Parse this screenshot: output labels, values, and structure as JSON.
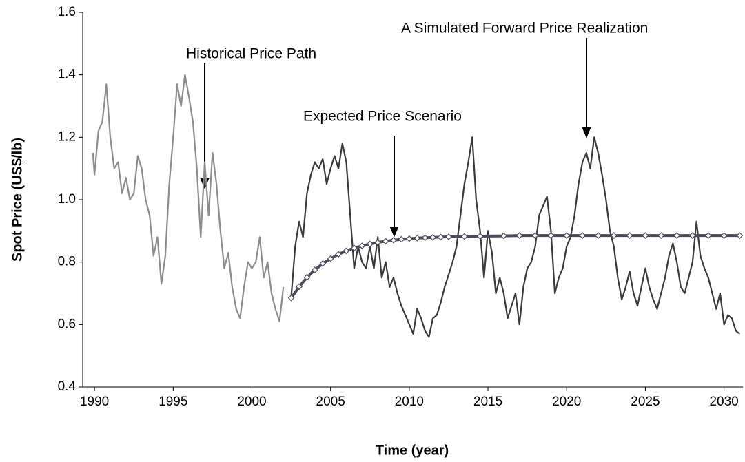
{
  "chart_data": {
    "type": "line",
    "xlabel": "Time (year)",
    "ylabel": "Spot Price (US$/lb)",
    "xlim": [
      1989.25,
      2031.2
    ],
    "xticks": [
      1990,
      1995,
      2000,
      2005,
      2010,
      2015,
      2020,
      2025,
      2030
    ],
    "ylim": [
      0.4,
      1.6
    ],
    "yticks": [
      0.4,
      0.6,
      0.8,
      {
        "value": 1.0,
        "label": "1.0"
      },
      1.2,
      1.4,
      1.6
    ],
    "grid": false,
    "annotations": [
      "Historical Price Path",
      "Expected Price Scenario",
      "A Simulated Forward Price Realization"
    ],
    "series": [
      {
        "name": "Historical Price Path",
        "color": "#8c8c8c",
        "x": [
          1989.9,
          1990.0,
          1990.25,
          1990.5,
          1990.75,
          1991.0,
          1991.25,
          1991.5,
          1991.75,
          1992.0,
          1992.25,
          1992.5,
          1992.75,
          1993.0,
          1993.25,
          1993.5,
          1993.75,
          1994.0,
          1994.25,
          1994.5,
          1994.75,
          1995.0,
          1995.25,
          1995.5,
          1995.75,
          1996.0,
          1996.25,
          1996.5,
          1996.75,
          1997.0,
          1997.25,
          1997.5,
          1997.75,
          1998.0,
          1998.25,
          1998.5,
          1998.75,
          1999.0,
          1999.25,
          1999.5,
          1999.75,
          2000.0,
          2000.25,
          2000.5,
          2000.75,
          2001.0,
          2001.25,
          2001.5,
          2001.75,
          2002.0
        ],
        "values": [
          1.15,
          1.08,
          1.22,
          1.25,
          1.37,
          1.2,
          1.1,
          1.12,
          1.02,
          1.07,
          1.0,
          1.02,
          1.14,
          1.1,
          1.0,
          0.95,
          0.82,
          0.88,
          0.73,
          0.82,
          1.05,
          1.2,
          1.37,
          1.3,
          1.4,
          1.33,
          1.25,
          1.1,
          0.88,
          1.12,
          0.95,
          1.15,
          1.05,
          0.9,
          0.78,
          0.83,
          0.72,
          0.65,
          0.62,
          0.72,
          0.8,
          0.78,
          0.8,
          0.88,
          0.75,
          0.8,
          0.7,
          0.65,
          0.61,
          0.72
        ]
      },
      {
        "name": "A Simulated Forward Price Realization",
        "color": "#3a3a3a",
        "x": [
          2002.5,
          2002.75,
          2003.0,
          2003.25,
          2003.5,
          2003.75,
          2004.0,
          2004.25,
          2004.5,
          2004.75,
          2005.0,
          2005.25,
          2005.5,
          2005.75,
          2006.0,
          2006.25,
          2006.5,
          2006.75,
          2007.0,
          2007.25,
          2007.5,
          2007.75,
          2008.0,
          2008.25,
          2008.5,
          2008.75,
          2009.0,
          2009.25,
          2009.5,
          2009.75,
          2010.0,
          2010.25,
          2010.5,
          2010.75,
          2011.0,
          2011.25,
          2011.5,
          2011.75,
          2012.0,
          2012.25,
          2012.5,
          2012.75,
          2013.0,
          2013.25,
          2013.5,
          2013.75,
          2014.0,
          2014.25,
          2014.5,
          2014.75,
          2015.0,
          2015.25,
          2015.5,
          2015.75,
          2016.0,
          2016.25,
          2016.5,
          2016.75,
          2017.0,
          2017.25,
          2017.5,
          2017.75,
          2018.0,
          2018.25,
          2018.5,
          2018.75,
          2019.0,
          2019.25,
          2019.5,
          2019.75,
          2020.0,
          2020.25,
          2020.5,
          2020.75,
          2021.0,
          2021.25,
          2021.5,
          2021.75,
          2022.0,
          2022.25,
          2022.5,
          2022.75,
          2023.0,
          2023.25,
          2023.5,
          2023.75,
          2024.0,
          2024.25,
          2024.5,
          2024.75,
          2025.0,
          2025.25,
          2025.5,
          2025.75,
          2026.0,
          2026.25,
          2026.5,
          2026.75,
          2027.0,
          2027.25,
          2027.5,
          2027.75,
          2028.0,
          2028.25,
          2028.5,
          2028.75,
          2029.0,
          2029.25,
          2029.5,
          2029.75,
          2030.0,
          2030.25,
          2030.5,
          2030.75,
          2031.0
        ],
        "values": [
          0.69,
          0.85,
          0.93,
          0.88,
          1.02,
          1.08,
          1.12,
          1.1,
          1.13,
          1.05,
          1.1,
          1.14,
          1.1,
          1.18,
          1.12,
          0.95,
          0.78,
          0.85,
          0.8,
          0.78,
          0.85,
          0.78,
          0.88,
          0.75,
          0.8,
          0.72,
          0.75,
          0.7,
          0.66,
          0.63,
          0.6,
          0.57,
          0.65,
          0.62,
          0.58,
          0.56,
          0.62,
          0.63,
          0.67,
          0.72,
          0.76,
          0.8,
          0.85,
          0.95,
          1.05,
          1.12,
          1.2,
          1.0,
          0.9,
          0.75,
          0.9,
          0.83,
          0.7,
          0.75,
          0.7,
          0.62,
          0.66,
          0.7,
          0.6,
          0.72,
          0.78,
          0.8,
          0.85,
          0.95,
          0.98,
          1.01,
          0.9,
          0.7,
          0.75,
          0.78,
          0.85,
          0.88,
          0.95,
          1.05,
          1.12,
          1.15,
          1.1,
          1.2,
          1.15,
          1.08,
          1.0,
          0.9,
          0.85,
          0.75,
          0.68,
          0.72,
          0.77,
          0.7,
          0.66,
          0.72,
          0.78,
          0.72,
          0.68,
          0.65,
          0.7,
          0.75,
          0.82,
          0.86,
          0.8,
          0.72,
          0.7,
          0.75,
          0.8,
          0.93,
          0.82,
          0.78,
          0.75,
          0.7,
          0.65,
          0.7,
          0.6,
          0.63,
          0.62,
          0.58,
          0.57
        ]
      },
      {
        "name": "Expected Price Scenario",
        "color": "#4a4a5a",
        "x": [
          2002.5,
          2003.0,
          2003.5,
          2004.0,
          2004.5,
          2005.0,
          2005.5,
          2006.0,
          2006.5,
          2007.0,
          2007.5,
          2008.0,
          2008.5,
          2009.0,
          2009.5,
          2010.0,
          2010.5,
          2011.0,
          2011.5,
          2012.0,
          2012.5,
          2013.5,
          2014.5,
          2016.0,
          2017.0,
          2018.0,
          2019.0,
          2020.0,
          2021.0,
          2022.0,
          2023.0,
          2024.0,
          2025.0,
          2026.0,
          2027.0,
          2028.0,
          2029.0,
          2030.0,
          2031.0
        ],
        "values": [
          0.685,
          0.721,
          0.751,
          0.775,
          0.795,
          0.811,
          0.825,
          0.836,
          0.845,
          0.852,
          0.858,
          0.863,
          0.867,
          0.87,
          0.873,
          0.875,
          0.877,
          0.878,
          0.879,
          0.88,
          0.881,
          0.882,
          0.883,
          0.884,
          0.885,
          0.885,
          0.885,
          0.885,
          0.885,
          0.885,
          0.885,
          0.885,
          0.885,
          0.885,
          0.885,
          0.885,
          0.885,
          0.885,
          0.885
        ]
      }
    ]
  }
}
